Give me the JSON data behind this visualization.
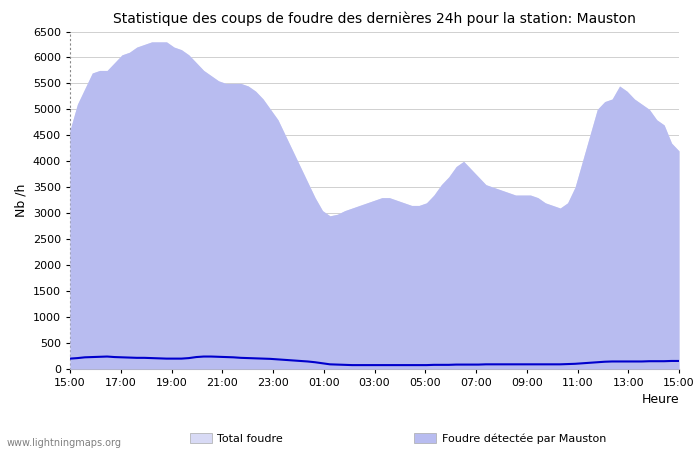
{
  "title": "Statistique des coups de foudre des dernières 24h pour la station: Mauston",
  "xlabel": "Heure",
  "ylabel": "Nb /h",
  "watermark": "www.lightningmaps.org",
  "x_ticks": [
    "15:00",
    "17:00",
    "19:00",
    "21:00",
    "23:00",
    "01:00",
    "03:00",
    "05:00",
    "07:00",
    "09:00",
    "11:00",
    "13:00",
    "15:00"
  ],
  "ylim": [
    0,
    6500
  ],
  "yticks": [
    0,
    500,
    1000,
    1500,
    2000,
    2500,
    3000,
    3500,
    4000,
    4500,
    5000,
    5500,
    6000,
    6500
  ],
  "total_foudre_color": "#d8daf5",
  "mauston_color": "#b8bcf0",
  "moyenne_color": "#0000cc",
  "bg_color": "#ffffff",
  "plot_bg_color": "#ffffff",
  "grid_color": "#d0d0d0",
  "total_foudre_y": [
    4600,
    5100,
    5400,
    5700,
    5750,
    5750,
    5900,
    6050,
    6100,
    6200,
    6250,
    6300,
    6300,
    6300,
    6200,
    6150,
    6050,
    5900,
    5750,
    5650,
    5550,
    5500,
    5500,
    5500,
    5450,
    5350,
    5200,
    5000,
    4800,
    4500,
    4200,
    3900,
    3600,
    3300,
    3050,
    2950,
    2980,
    3050,
    3100,
    3150,
    3200,
    3250,
    3300,
    3300,
    3250,
    3200,
    3150,
    3150,
    3200,
    3350,
    3550,
    3700,
    3900,
    4000,
    3850,
    3700,
    3550,
    3500,
    3450,
    3400,
    3350,
    3350,
    3350,
    3300,
    3200,
    3150,
    3100,
    3200,
    3500,
    4000,
    4500,
    5000,
    5150,
    5200,
    5450,
    5350,
    5200,
    5100,
    5000,
    4800,
    4700,
    4350,
    4200
  ],
  "mauston_y": [
    4600,
    5100,
    5400,
    5700,
    5750,
    5750,
    5900,
    6050,
    6100,
    6200,
    6250,
    6300,
    6300,
    6300,
    6200,
    6150,
    6050,
    5900,
    5750,
    5650,
    5550,
    5500,
    5500,
    5500,
    5450,
    5350,
    5200,
    5000,
    4800,
    4500,
    4200,
    3900,
    3600,
    3300,
    3050,
    2950,
    2980,
    3050,
    3100,
    3150,
    3200,
    3250,
    3300,
    3300,
    3250,
    3200,
    3150,
    3150,
    3200,
    3350,
    3550,
    3700,
    3900,
    4000,
    3850,
    3700,
    3550,
    3500,
    3450,
    3400,
    3350,
    3350,
    3350,
    3300,
    3200,
    3150,
    3100,
    3200,
    3500,
    4000,
    4500,
    5000,
    5150,
    5200,
    5450,
    5350,
    5200,
    5100,
    5000,
    4800,
    4700,
    4350,
    4200
  ],
  "moyenne_y": [
    200,
    210,
    225,
    230,
    235,
    240,
    230,
    225,
    220,
    215,
    215,
    210,
    205,
    200,
    200,
    200,
    210,
    230,
    240,
    240,
    235,
    230,
    225,
    215,
    210,
    205,
    200,
    195,
    185,
    175,
    165,
    155,
    145,
    130,
    110,
    90,
    85,
    80,
    75,
    75,
    75,
    75,
    75,
    75,
    75,
    75,
    75,
    75,
    75,
    80,
    80,
    80,
    85,
    85,
    85,
    85,
    90,
    90,
    90,
    90,
    90,
    90,
    90,
    90,
    90,
    90,
    90,
    95,
    100,
    110,
    120,
    130,
    140,
    145,
    145,
    145,
    145,
    145,
    150,
    150,
    150,
    155,
    155
  ]
}
